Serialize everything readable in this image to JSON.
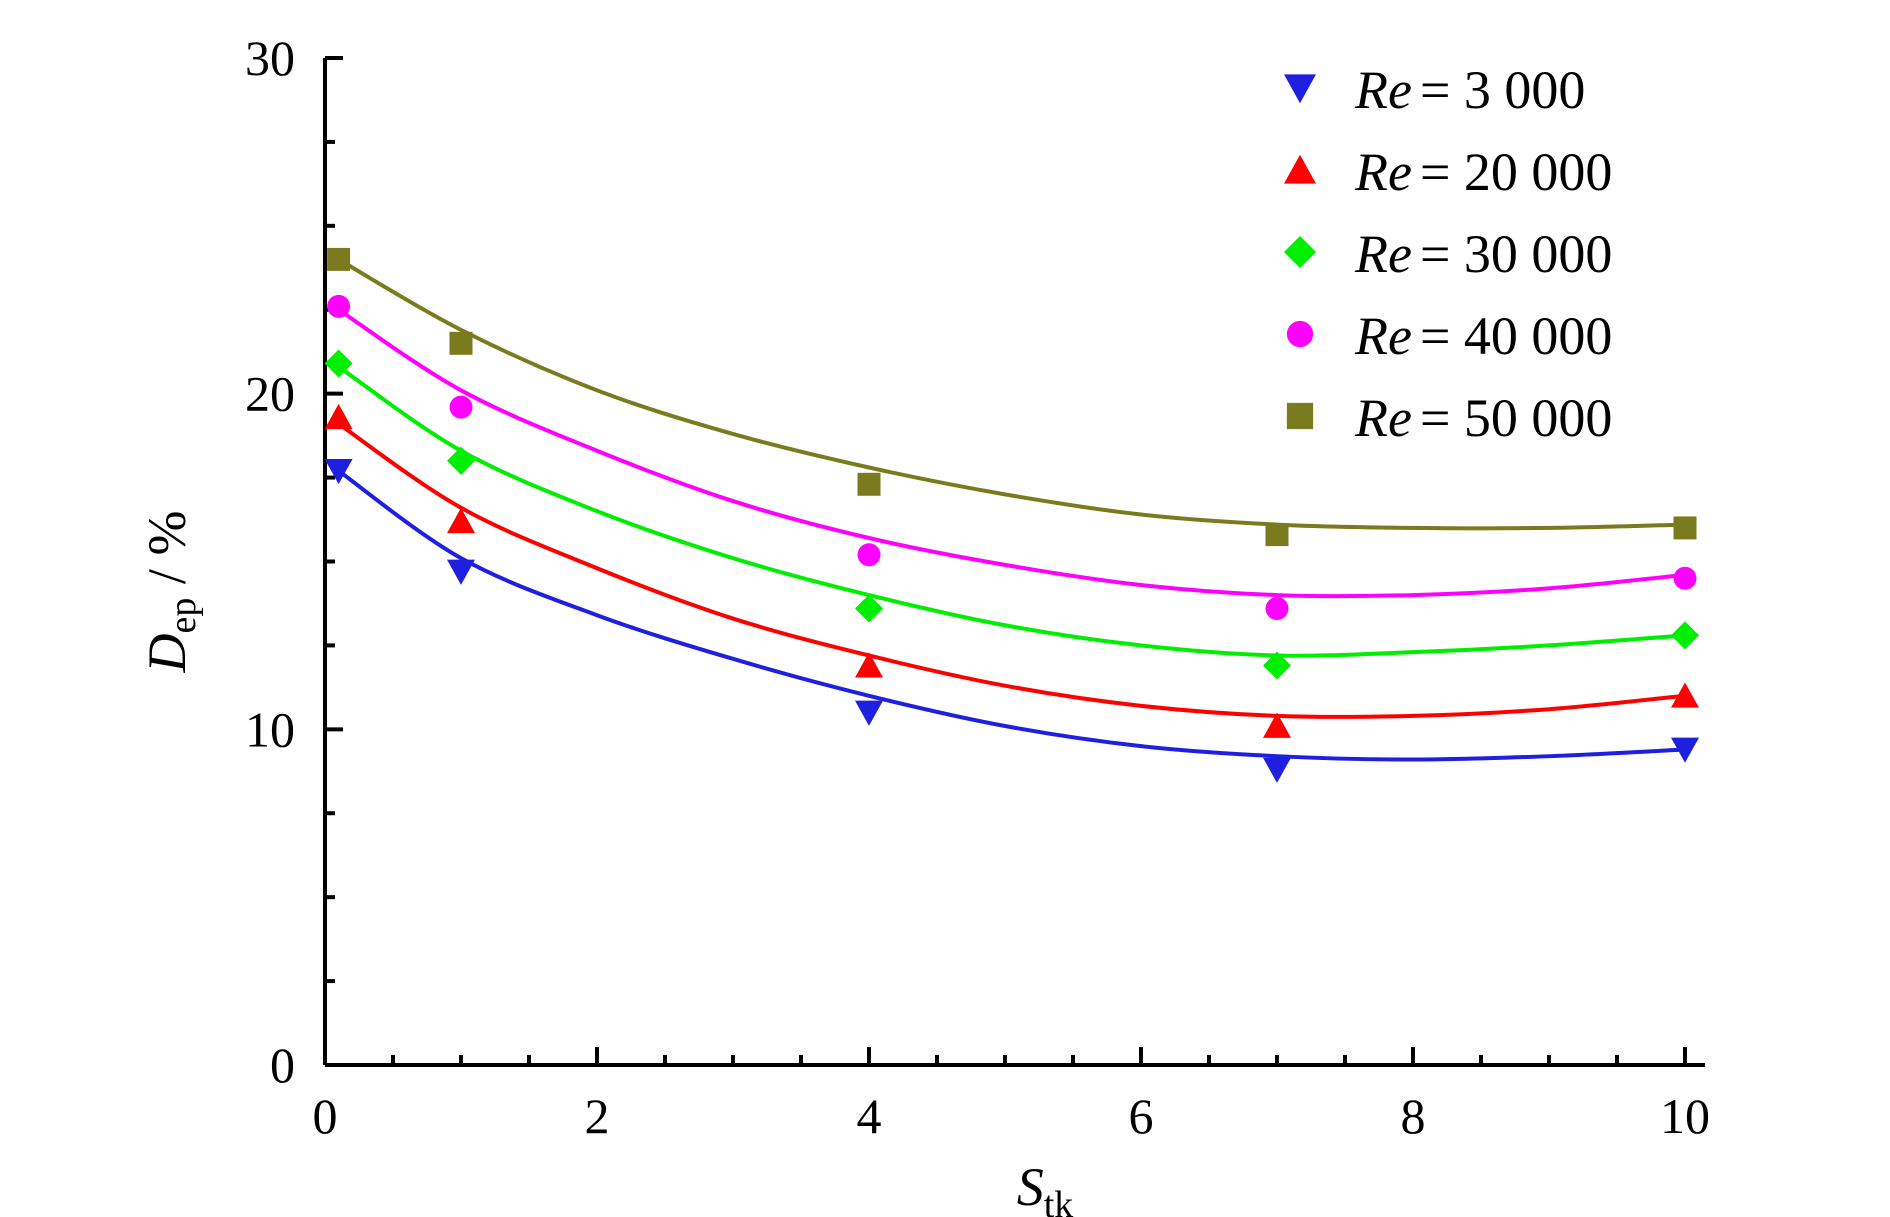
{
  "chart_data": {
    "type": "scatter",
    "xlabel": {
      "main": "S",
      "sub": "tk"
    },
    "ylabel": {
      "main": "D",
      "sub": "ep",
      "unit": " / %"
    },
    "xlim": [
      0,
      10
    ],
    "ylim": [
      0,
      30
    ],
    "x_ticks": [
      "0",
      "2",
      "4",
      "6",
      "8",
      "10"
    ],
    "y_ticks": [
      "0",
      "10",
      "20",
      "30"
    ],
    "legend_position": "top-right",
    "grid": false,
    "series": [
      {
        "name": "Re = 3 000",
        "name_prefix": "Re",
        "name_value": "= 3 000",
        "marker": "triangle-down",
        "color": "#1f1fe0",
        "x": [
          0.1,
          1,
          4,
          7,
          10
        ],
        "y": [
          17.7,
          14.7,
          10.5,
          8.8,
          9.4
        ],
        "fit": [
          [
            0.1,
            17.7
          ],
          [
            1,
            15.1
          ],
          [
            2,
            13.4
          ],
          [
            3,
            12.1
          ],
          [
            4,
            11.0
          ],
          [
            5,
            10.1
          ],
          [
            6,
            9.5
          ],
          [
            7,
            9.2
          ],
          [
            8,
            9.1
          ],
          [
            9,
            9.2
          ],
          [
            10,
            9.4
          ]
        ]
      },
      {
        "name": "Re = 20 000",
        "name_prefix": "Re",
        "name_value": "= 20 000",
        "marker": "triangle-up",
        "color": "#ff0000",
        "x": [
          0.1,
          1,
          4,
          7,
          10
        ],
        "y": [
          19.3,
          16.2,
          11.9,
          10.1,
          11.0
        ],
        "fit": [
          [
            0.1,
            19.1
          ],
          [
            1,
            16.6
          ],
          [
            2,
            14.8
          ],
          [
            3,
            13.3
          ],
          [
            4,
            12.2
          ],
          [
            5,
            11.3
          ],
          [
            6,
            10.7
          ],
          [
            7,
            10.4
          ],
          [
            8,
            10.4
          ],
          [
            9,
            10.6
          ],
          [
            10,
            11.0
          ]
        ]
      },
      {
        "name": "Re = 30 000",
        "name_prefix": "Re",
        "name_value": "= 30 000",
        "marker": "diamond",
        "color": "#00ee00",
        "x": [
          0.1,
          1,
          4,
          7,
          10
        ],
        "y": [
          20.9,
          18.0,
          13.6,
          11.9,
          12.8
        ],
        "fit": [
          [
            0.1,
            20.8
          ],
          [
            1,
            18.3
          ],
          [
            2,
            16.5
          ],
          [
            3,
            15.1
          ],
          [
            4,
            14.0
          ],
          [
            5,
            13.1
          ],
          [
            6,
            12.5
          ],
          [
            7,
            12.2
          ],
          [
            8,
            12.3
          ],
          [
            9,
            12.5
          ],
          [
            10,
            12.8
          ]
        ]
      },
      {
        "name": "Re = 40 000",
        "name_prefix": "Re",
        "name_value": "= 40 000",
        "marker": "circle",
        "color": "#ff00ff",
        "x": [
          0.1,
          1,
          4,
          7,
          10
        ],
        "y": [
          22.6,
          19.6,
          15.2,
          13.6,
          14.5
        ],
        "fit": [
          [
            0.1,
            22.5
          ],
          [
            1,
            20.1
          ],
          [
            2,
            18.3
          ],
          [
            3,
            16.8
          ],
          [
            4,
            15.7
          ],
          [
            5,
            14.9
          ],
          [
            6,
            14.3
          ],
          [
            7,
            14.0
          ],
          [
            8,
            14.0
          ],
          [
            9,
            14.2
          ],
          [
            10,
            14.6
          ]
        ]
      },
      {
        "name": "Re = 50 000",
        "name_prefix": "Re",
        "name_value": "= 50 000",
        "marker": "square",
        "color": "#7a7a1e",
        "x": [
          0.1,
          1,
          4,
          7,
          10
        ],
        "y": [
          24.0,
          21.5,
          17.3,
          15.8,
          16.0
        ],
        "fit": [
          [
            0.1,
            24.0
          ],
          [
            1,
            21.9
          ],
          [
            2,
            20.1
          ],
          [
            3,
            18.8
          ],
          [
            4,
            17.8
          ],
          [
            5,
            17.0
          ],
          [
            6,
            16.4
          ],
          [
            7,
            16.1
          ],
          [
            8,
            16.0
          ],
          [
            9,
            16.0
          ],
          [
            10,
            16.1
          ]
        ]
      }
    ]
  }
}
